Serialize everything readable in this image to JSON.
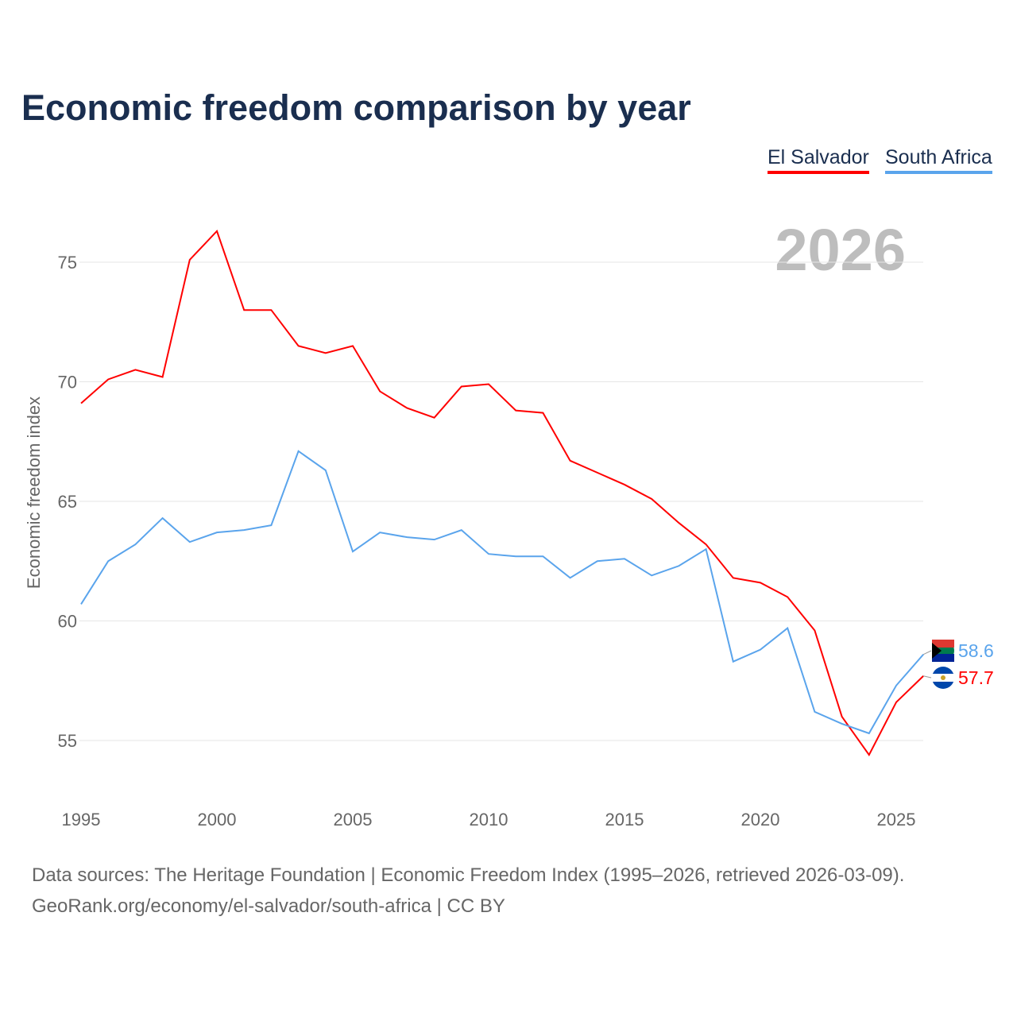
{
  "chart_data": {
    "type": "line",
    "title": "Economic freedom comparison by year",
    "ylabel": "Economic freedom index",
    "xlabel": "",
    "ylim": [
      52.5,
      78
    ],
    "xlim": [
      1995,
      2026
    ],
    "yticks": [
      55,
      60,
      65,
      70,
      75
    ],
    "xticks": [
      1995,
      2000,
      2005,
      2010,
      2015,
      2020,
      2025
    ],
    "grid": true,
    "legend_position": "top-right",
    "watermark_year": "2026",
    "x": [
      1995,
      1996,
      1997,
      1998,
      1999,
      2000,
      2001,
      2002,
      2003,
      2004,
      2005,
      2006,
      2007,
      2008,
      2009,
      2010,
      2011,
      2012,
      2013,
      2014,
      2015,
      2016,
      2017,
      2018,
      2019,
      2020,
      2021,
      2022,
      2023,
      2024,
      2025,
      2026
    ],
    "series": [
      {
        "name": "El Salvador",
        "color": "#ff0000",
        "end_label": "57.7",
        "values": [
          69.1,
          70.1,
          70.5,
          70.2,
          75.1,
          76.3,
          73.0,
          73.0,
          71.5,
          71.2,
          71.5,
          69.6,
          68.9,
          68.5,
          69.8,
          69.9,
          68.8,
          68.7,
          66.7,
          66.2,
          65.7,
          65.1,
          64.1,
          63.2,
          61.8,
          61.6,
          61.0,
          59.6,
          56.0,
          54.4,
          56.6,
          57.7
        ]
      },
      {
        "name": "South Africa",
        "color": "#5aa4ec",
        "end_label": "58.6",
        "values": [
          60.7,
          62.5,
          63.2,
          64.3,
          63.3,
          63.7,
          63.8,
          64.0,
          67.1,
          66.3,
          62.9,
          63.7,
          63.5,
          63.4,
          63.8,
          62.8,
          62.7,
          62.7,
          61.8,
          62.5,
          62.6,
          61.9,
          62.3,
          63.0,
          58.3,
          58.8,
          59.7,
          56.2,
          55.7,
          55.3,
          57.3,
          58.6
        ]
      }
    ]
  },
  "footer": {
    "line1": "Data sources: The Heritage Foundation | Economic Freedom Index (1995–2026, retrieved 2026-03-09).",
    "line2": "GeoRank.org/economy/el-salvador/south-africa | CC BY"
  }
}
